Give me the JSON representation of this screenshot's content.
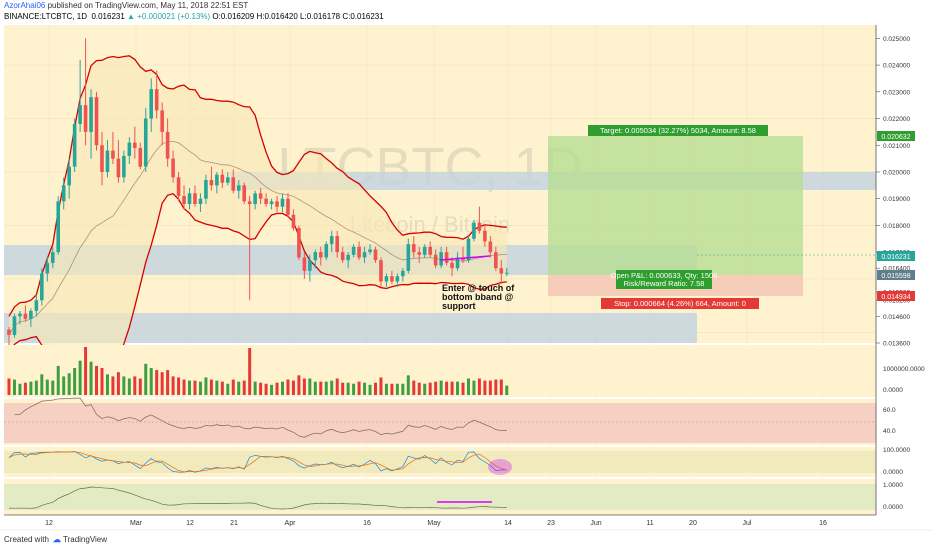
{
  "header": {
    "author": "AzorAhai06",
    "published_text": "published on TradingView.com, May 11, 2018 22:51 EST",
    "symbol": "BINANCE:LTCBTC, 1D",
    "last": "0.016231",
    "change": "+0.000021 (+0.13%)",
    "open": "O:0.016209",
    "high": "H:0.016420",
    "low": "L:0.016178",
    "close": "C:0.016231"
  },
  "watermark": {
    "symbol": "LTCBTC, 1D",
    "name": "Litecoin / Bitcoin"
  },
  "annotation": {
    "line1": "Enter @ touch of",
    "line2": "bottom bband @",
    "line3": "support"
  },
  "position": {
    "target": "Target: 0.005034 (32.27%) 5034, Amount: 8.58",
    "open_pl": "Open P&L: 0.000633, Qty: 1506",
    "rr": "Risk/Reward Ratio: 7.58",
    "stop": "Stop: 0.000664 (4.26%) 664, Amount: 0"
  },
  "price_badges": {
    "target": "0.020632",
    "last": "0.016231",
    "entry": "0.015598",
    "stop": "0.014934"
  },
  "footer": {
    "created": "Created with",
    "brand": "TradingView"
  },
  "colors": {
    "up": "#26a69a",
    "down": "#ef5350",
    "band": "#d50000",
    "background": "#fff3cf",
    "zone": "#c5d3df",
    "target_zone": "#b8dd92",
    "stop_zone": "#f5c9b5",
    "trendline": "#d500f9"
  },
  "chart_data": {
    "type": "candlestick",
    "price_axis_ticks": [
      "0.025000",
      "0.024000",
      "0.023000",
      "0.022000",
      "0.021000",
      "0.020000",
      "0.019000",
      "0.018000",
      "0.017000",
      "0.016400",
      "0.015500",
      "0.015200",
      "0.014600",
      "0.013600"
    ],
    "time_axis_ticks": [
      "12",
      "Mar",
      "12",
      "21",
      "Apr",
      "16",
      "May",
      "14",
      "23",
      "Jun",
      "11",
      "20",
      "Jul",
      "16"
    ],
    "volume_ticks": [
      "1000000.0000",
      "0.0000"
    ],
    "rsi_ticks": [
      "60.0",
      "40.0"
    ],
    "stoch_ticks": [
      "100.0000",
      "0.0000"
    ],
    "osc_ticks": [
      "1.0000",
      "0.0000"
    ],
    "candles": [
      [
        0.0141,
        0.0142,
        0.0132,
        0.0139
      ],
      [
        0.0139,
        0.0147,
        0.0138,
        0.0146
      ],
      [
        0.0146,
        0.0148,
        0.0143,
        0.0147
      ],
      [
        0.0147,
        0.015,
        0.0144,
        0.0145
      ],
      [
        0.0145,
        0.0149,
        0.0142,
        0.0148
      ],
      [
        0.0148,
        0.0154,
        0.0146,
        0.0152
      ],
      [
        0.0152,
        0.0164,
        0.015,
        0.0162
      ],
      [
        0.0162,
        0.0168,
        0.0159,
        0.0166
      ],
      [
        0.0166,
        0.0172,
        0.0164,
        0.017
      ],
      [
        0.017,
        0.0191,
        0.0169,
        0.0189
      ],
      [
        0.0189,
        0.0198,
        0.0186,
        0.0195
      ],
      [
        0.0195,
        0.0205,
        0.019,
        0.0202
      ],
      [
        0.0202,
        0.022,
        0.02,
        0.0218
      ],
      [
        0.0218,
        0.0242,
        0.0215,
        0.0225
      ],
      [
        0.0225,
        0.025,
        0.021,
        0.0215
      ],
      [
        0.0215,
        0.0231,
        0.0205,
        0.0228
      ],
      [
        0.0228,
        0.023,
        0.0208,
        0.021
      ],
      [
        0.021,
        0.0215,
        0.0195,
        0.02
      ],
      [
        0.02,
        0.0212,
        0.0198,
        0.0208
      ],
      [
        0.0208,
        0.0215,
        0.0203,
        0.0205
      ],
      [
        0.0205,
        0.0212,
        0.0196,
        0.0198
      ],
      [
        0.0198,
        0.0208,
        0.0196,
        0.0206
      ],
      [
        0.0206,
        0.0213,
        0.0203,
        0.0211
      ],
      [
        0.0211,
        0.0217,
        0.0205,
        0.0209
      ],
      [
        0.0209,
        0.0211,
        0.0201,
        0.0202
      ],
      [
        0.0202,
        0.0224,
        0.02,
        0.022
      ],
      [
        0.022,
        0.0235,
        0.0215,
        0.0231
      ],
      [
        0.0231,
        0.0238,
        0.022,
        0.0223
      ],
      [
        0.0223,
        0.0226,
        0.021,
        0.0215
      ],
      [
        0.0215,
        0.022,
        0.0202,
        0.0205
      ],
      [
        0.0205,
        0.0208,
        0.0196,
        0.0198
      ],
      [
        0.0198,
        0.02,
        0.0189,
        0.0191
      ],
      [
        0.0191,
        0.0195,
        0.0186,
        0.0188
      ],
      [
        0.0188,
        0.0194,
        0.0186,
        0.0192
      ],
      [
        0.0192,
        0.0195,
        0.0187,
        0.0188
      ],
      [
        0.0188,
        0.0192,
        0.0185,
        0.019
      ],
      [
        0.019,
        0.0199,
        0.0188,
        0.0197
      ],
      [
        0.0197,
        0.0202,
        0.0193,
        0.0195
      ],
      [
        0.0195,
        0.02,
        0.0192,
        0.0199
      ],
      [
        0.0199,
        0.0201,
        0.0194,
        0.0196
      ],
      [
        0.0196,
        0.02,
        0.0195,
        0.0198
      ],
      [
        0.0198,
        0.0201,
        0.0192,
        0.0193
      ],
      [
        0.0193,
        0.0197,
        0.019,
        0.0195
      ],
      [
        0.0195,
        0.0196,
        0.0188,
        0.0189
      ],
      [
        0.0189,
        0.0191,
        0.0152,
        0.0188
      ],
      [
        0.0188,
        0.0193,
        0.0186,
        0.0192
      ],
      [
        0.0192,
        0.0194,
        0.0188,
        0.019
      ],
      [
        0.019,
        0.0192,
        0.0187,
        0.0188
      ],
      [
        0.0188,
        0.019,
        0.0186,
        0.0189
      ],
      [
        0.0189,
        0.0191,
        0.0185,
        0.0187
      ],
      [
        0.0187,
        0.0192,
        0.0185,
        0.019
      ],
      [
        0.019,
        0.0192,
        0.0183,
        0.0184
      ],
      [
        0.0184,
        0.0186,
        0.0178,
        0.0179
      ],
      [
        0.0179,
        0.018,
        0.0167,
        0.0168
      ],
      [
        0.0168,
        0.017,
        0.016,
        0.0163
      ],
      [
        0.0163,
        0.0169,
        0.0159,
        0.0167
      ],
      [
        0.0167,
        0.0171,
        0.0164,
        0.017
      ],
      [
        0.017,
        0.0172,
        0.0165,
        0.0168
      ],
      [
        0.0168,
        0.0174,
        0.0167,
        0.0173
      ],
      [
        0.0173,
        0.0178,
        0.017,
        0.0176
      ],
      [
        0.0176,
        0.0178,
        0.0168,
        0.017
      ],
      [
        0.017,
        0.0172,
        0.0166,
        0.0167
      ],
      [
        0.0167,
        0.017,
        0.0164,
        0.0169
      ],
      [
        0.0169,
        0.0173,
        0.0168,
        0.0172
      ],
      [
        0.0172,
        0.0174,
        0.0167,
        0.0168
      ],
      [
        0.0168,
        0.0172,
        0.0166,
        0.017
      ],
      [
        0.017,
        0.0173,
        0.0169,
        0.0171
      ],
      [
        0.0171,
        0.0172,
        0.0166,
        0.0167
      ],
      [
        0.0167,
        0.0168,
        0.0157,
        0.0159
      ],
      [
        0.0159,
        0.0162,
        0.0157,
        0.0161
      ],
      [
        0.0161,
        0.0163,
        0.0158,
        0.0159
      ],
      [
        0.0159,
        0.0162,
        0.0157,
        0.0161
      ],
      [
        0.0161,
        0.0164,
        0.0159,
        0.0163
      ],
      [
        0.0163,
        0.0175,
        0.0162,
        0.0173
      ],
      [
        0.0173,
        0.0176,
        0.0168,
        0.017
      ],
      [
        0.017,
        0.0172,
        0.0166,
        0.0169
      ],
      [
        0.0169,
        0.0173,
        0.0168,
        0.0172
      ],
      [
        0.0172,
        0.0174,
        0.0168,
        0.0169
      ],
      [
        0.0169,
        0.0171,
        0.0164,
        0.0165
      ],
      [
        0.0165,
        0.0172,
        0.0164,
        0.017
      ],
      [
        0.017,
        0.0172,
        0.0165,
        0.0166
      ],
      [
        0.0166,
        0.0168,
        0.0161,
        0.0164
      ],
      [
        0.0164,
        0.017,
        0.0163,
        0.0168
      ],
      [
        0.0168,
        0.0172,
        0.0166,
        0.0167
      ],
      [
        0.0167,
        0.0176,
        0.0166,
        0.0175
      ],
      [
        0.0175,
        0.0182,
        0.0174,
        0.0181
      ],
      [
        0.0181,
        0.0187,
        0.0177,
        0.0178
      ],
      [
        0.0178,
        0.018,
        0.0172,
        0.0174
      ],
      [
        0.0174,
        0.0176,
        0.0168,
        0.017
      ],
      [
        0.017,
        0.0172,
        0.0163,
        0.0164
      ],
      [
        0.0164,
        0.0167,
        0.0158,
        0.0162
      ],
      [
        0.0162,
        0.01642,
        0.0161,
        0.01623
      ]
    ]
  }
}
